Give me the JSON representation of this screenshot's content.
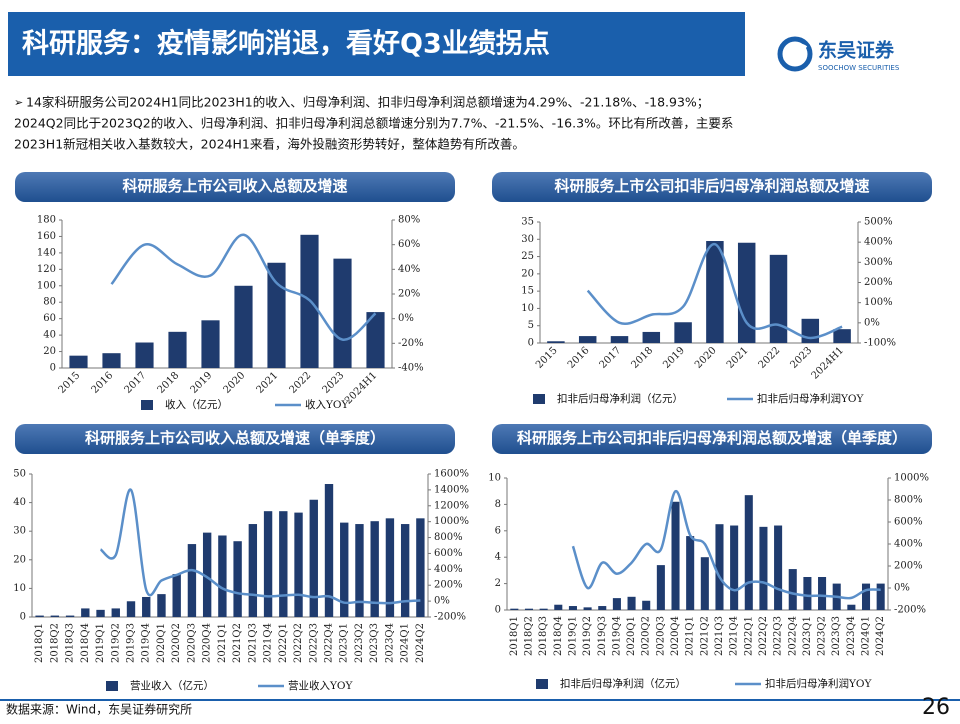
{
  "header": {
    "title": "科研服务：疫情影响消退，看好Q3业绩拐点",
    "logo": "东吴证券",
    "logo_en": "SOOCHOW SECURITIES"
  },
  "bullets": [
    "14家科研服务公司2024H1同比2023H1的收入、归母净利润、扣非归母净利润总额增速为4.29%、-21.18%、-18.93%；",
    "2024Q2同比于2023Q2的收入、归母净利润、扣非归母净利润总额增速分别为7.7%、-21.5%、-16.3%。环比有所改善，主要系",
    "2023H1新冠相关收入基数较大，2024H1来看，海外投融资形势转好，整体趋势有所改善。"
  ],
  "chart_data": [
    {
      "type": "bar",
      "title": "科研服务上市公司收入总额及增速",
      "categories": [
        "2015",
        "2016",
        "2017",
        "2018",
        "2019",
        "2020",
        "2021",
        "2022",
        "2023",
        "2024H1"
      ],
      "series": [
        {
          "name": "收入（亿元）",
          "color": "#1f3b6e",
          "values": [
            15,
            18,
            31,
            44,
            58,
            100,
            128,
            162,
            133,
            68
          ]
        },
        {
          "name": "收入YOY",
          "color": "#5b8fc9",
          "axis": "y2",
          "type": "line",
          "values": [
            null,
            28,
            60,
            44,
            35,
            68,
            29,
            15,
            -17,
            4.29
          ]
        }
      ],
      "ylim": [
        0,
        180
      ],
      "yticks": [
        0,
        20,
        40,
        60,
        80,
        100,
        120,
        140,
        160,
        180
      ],
      "y2lim": [
        -40,
        80
      ],
      "y2ticks": [
        {
          "value": -40,
          "label": "-40%"
        },
        {
          "value": -20,
          "label": "-20%"
        },
        {
          "value": 0,
          "label": "0%"
        },
        {
          "value": 20,
          "label": "20%"
        },
        {
          "value": 40,
          "label": "40%"
        },
        {
          "value": 60,
          "label": "60%"
        },
        {
          "value": 80,
          "label": "80%"
        }
      ],
      "grid": false,
      "legend": "bottom"
    },
    {
      "type": "bar",
      "title": "科研服务上市公司扣非后归母净利润总额及增速",
      "categories": [
        "2015",
        "2016",
        "2017",
        "2018",
        "2019",
        "2020",
        "2021",
        "2022",
        "2023",
        "2024H1"
      ],
      "series": [
        {
          "name": "扣非后归母净利润（亿元）",
          "color": "#1f3b6e",
          "values": [
            0.5,
            2,
            2,
            3.2,
            6,
            29.5,
            29,
            25.5,
            7,
            4
          ]
        },
        {
          "name": "扣非后归母净利润YOY",
          "color": "#5b8fc9",
          "axis": "y2",
          "type": "line",
          "values": [
            null,
            160,
            0,
            40,
            80,
            390,
            0,
            -10,
            -75,
            -18.93
          ]
        }
      ],
      "ylim": [
        0,
        35
      ],
      "yticks": [
        0,
        5,
        10,
        15,
        20,
        25,
        30,
        35
      ],
      "y2lim": [
        -100,
        500
      ],
      "y2ticks": [
        {
          "value": -100,
          "label": "-100%"
        },
        {
          "value": 0,
          "label": "0%"
        },
        {
          "value": 100,
          "label": "100%"
        },
        {
          "value": 200,
          "label": "200%"
        },
        {
          "value": 300,
          "label": "300%"
        },
        {
          "value": 400,
          "label": "400%"
        },
        {
          "value": 500,
          "label": "500%"
        }
      ],
      "grid": false,
      "legend": "bottom"
    },
    {
      "type": "bar",
      "title": "科研服务上市公司收入总额及增速（单季度）",
      "categories": [
        "2018Q1",
        "2018Q2",
        "2018Q3",
        "2018Q4",
        "2019Q1",
        "2019Q2",
        "2019Q3",
        "2019Q4",
        "2020Q1",
        "2020Q2",
        "2020Q3",
        "2020Q4",
        "2021Q1",
        "2021Q2",
        "2021Q3",
        "2021Q4",
        "2022Q1",
        "2022Q2",
        "2022Q3",
        "2022Q4",
        "2023Q1",
        "2023Q2",
        "2023Q3",
        "2023Q4",
        "2024Q1",
        "2024Q2"
      ],
      "series": [
        {
          "name": "营业收入（亿元）",
          "color": "#1f3b6e",
          "values": [
            0.5,
            0.5,
            0.5,
            3,
            2.5,
            3,
            5.5,
            7,
            8,
            15,
            25.5,
            29.5,
            28.5,
            26.5,
            32.5,
            37,
            37,
            36.5,
            41,
            46.5,
            33,
            32.5,
            33.5,
            34.5,
            32.5,
            34.5
          ]
        },
        {
          "name": "营业收入YOY",
          "color": "#5b8fc9",
          "axis": "y2",
          "type": "line",
          "values": [
            null,
            null,
            null,
            null,
            650,
            580,
            1400,
            140,
            260,
            330,
            390,
            300,
            160,
            100,
            80,
            60,
            70,
            80,
            50,
            60,
            -20,
            -10,
            -20,
            -25,
            -2,
            7.7
          ]
        }
      ],
      "ylim": [
        0,
        50
      ],
      "yticks": [
        0,
        10,
        20,
        30,
        40,
        50
      ],
      "y2lim": [
        -200,
        1600
      ],
      "y2ticks": [
        {
          "value": -200,
          "label": "-200%"
        },
        {
          "value": 0,
          "label": "0%"
        },
        {
          "value": 200,
          "label": "200%"
        },
        {
          "value": 400,
          "label": "400%"
        },
        {
          "value": 600,
          "label": "600%"
        },
        {
          "value": 800,
          "label": "800%"
        },
        {
          "value": 1000,
          "label": "1000%"
        },
        {
          "value": 1200,
          "label": "1200%"
        },
        {
          "value": 1400,
          "label": "1400%"
        },
        {
          "value": 1600,
          "label": "1600%"
        }
      ],
      "grid": false,
      "legend": "bottom"
    },
    {
      "type": "bar",
      "title": "科研服务上市公司扣非后归母净利润总额及增速（单季度）",
      "categories": [
        "2018Q1",
        "2018Q2",
        "2018Q3",
        "2018Q4",
        "2019Q1",
        "2019Q2",
        "2019Q3",
        "2019Q4",
        "2020Q1",
        "2020Q2",
        "2020Q3",
        "2020Q4",
        "2021Q1",
        "2021Q2",
        "2021Q3",
        "2021Q4",
        "2022Q1",
        "2022Q2",
        "2022Q3",
        "2022Q4",
        "2023Q1",
        "2023Q2",
        "2023Q3",
        "2023Q4",
        "2024Q1",
        "2024Q2"
      ],
      "series": [
        {
          "name": "扣非后归母净利润（亿元）",
          "color": "#1f3b6e",
          "values": [
            0.1,
            0.1,
            0.1,
            0.4,
            0.3,
            0.2,
            0.3,
            0.9,
            1,
            0.7,
            3.4,
            8.2,
            5.6,
            4,
            6.5,
            6.4,
            8.7,
            6.3,
            6.4,
            3.1,
            2.5,
            2.5,
            2,
            0.4,
            2,
            2
          ]
        },
        {
          "name": "扣非后归母净利润YOY",
          "color": "#5b8fc9",
          "axis": "y2",
          "type": "line",
          "values": [
            null,
            null,
            null,
            null,
            380,
            0,
            230,
            130,
            230,
            400,
            350,
            880,
            480,
            400,
            100,
            -20,
            50,
            50,
            -10,
            -50,
            -70,
            -70,
            -80,
            -90,
            -20,
            -16.3
          ]
        }
      ],
      "ylim": [
        0,
        10
      ],
      "yticks": [
        0,
        2,
        4,
        6,
        8,
        10
      ],
      "y2lim": [
        -200,
        1000
      ],
      "y2ticks": [
        {
          "value": -200,
          "label": "-200%"
        },
        {
          "value": 0,
          "label": "0%"
        },
        {
          "value": 200,
          "label": "200%"
        },
        {
          "value": 400,
          "label": "400%"
        },
        {
          "value": 600,
          "label": "600%"
        },
        {
          "value": 800,
          "label": "800%"
        },
        {
          "value": 1000,
          "label": "1000%"
        }
      ],
      "grid": false,
      "legend": "bottom"
    }
  ],
  "footer": {
    "source": "数据来源：Wind，东吴证券研究所",
    "page": "26"
  }
}
